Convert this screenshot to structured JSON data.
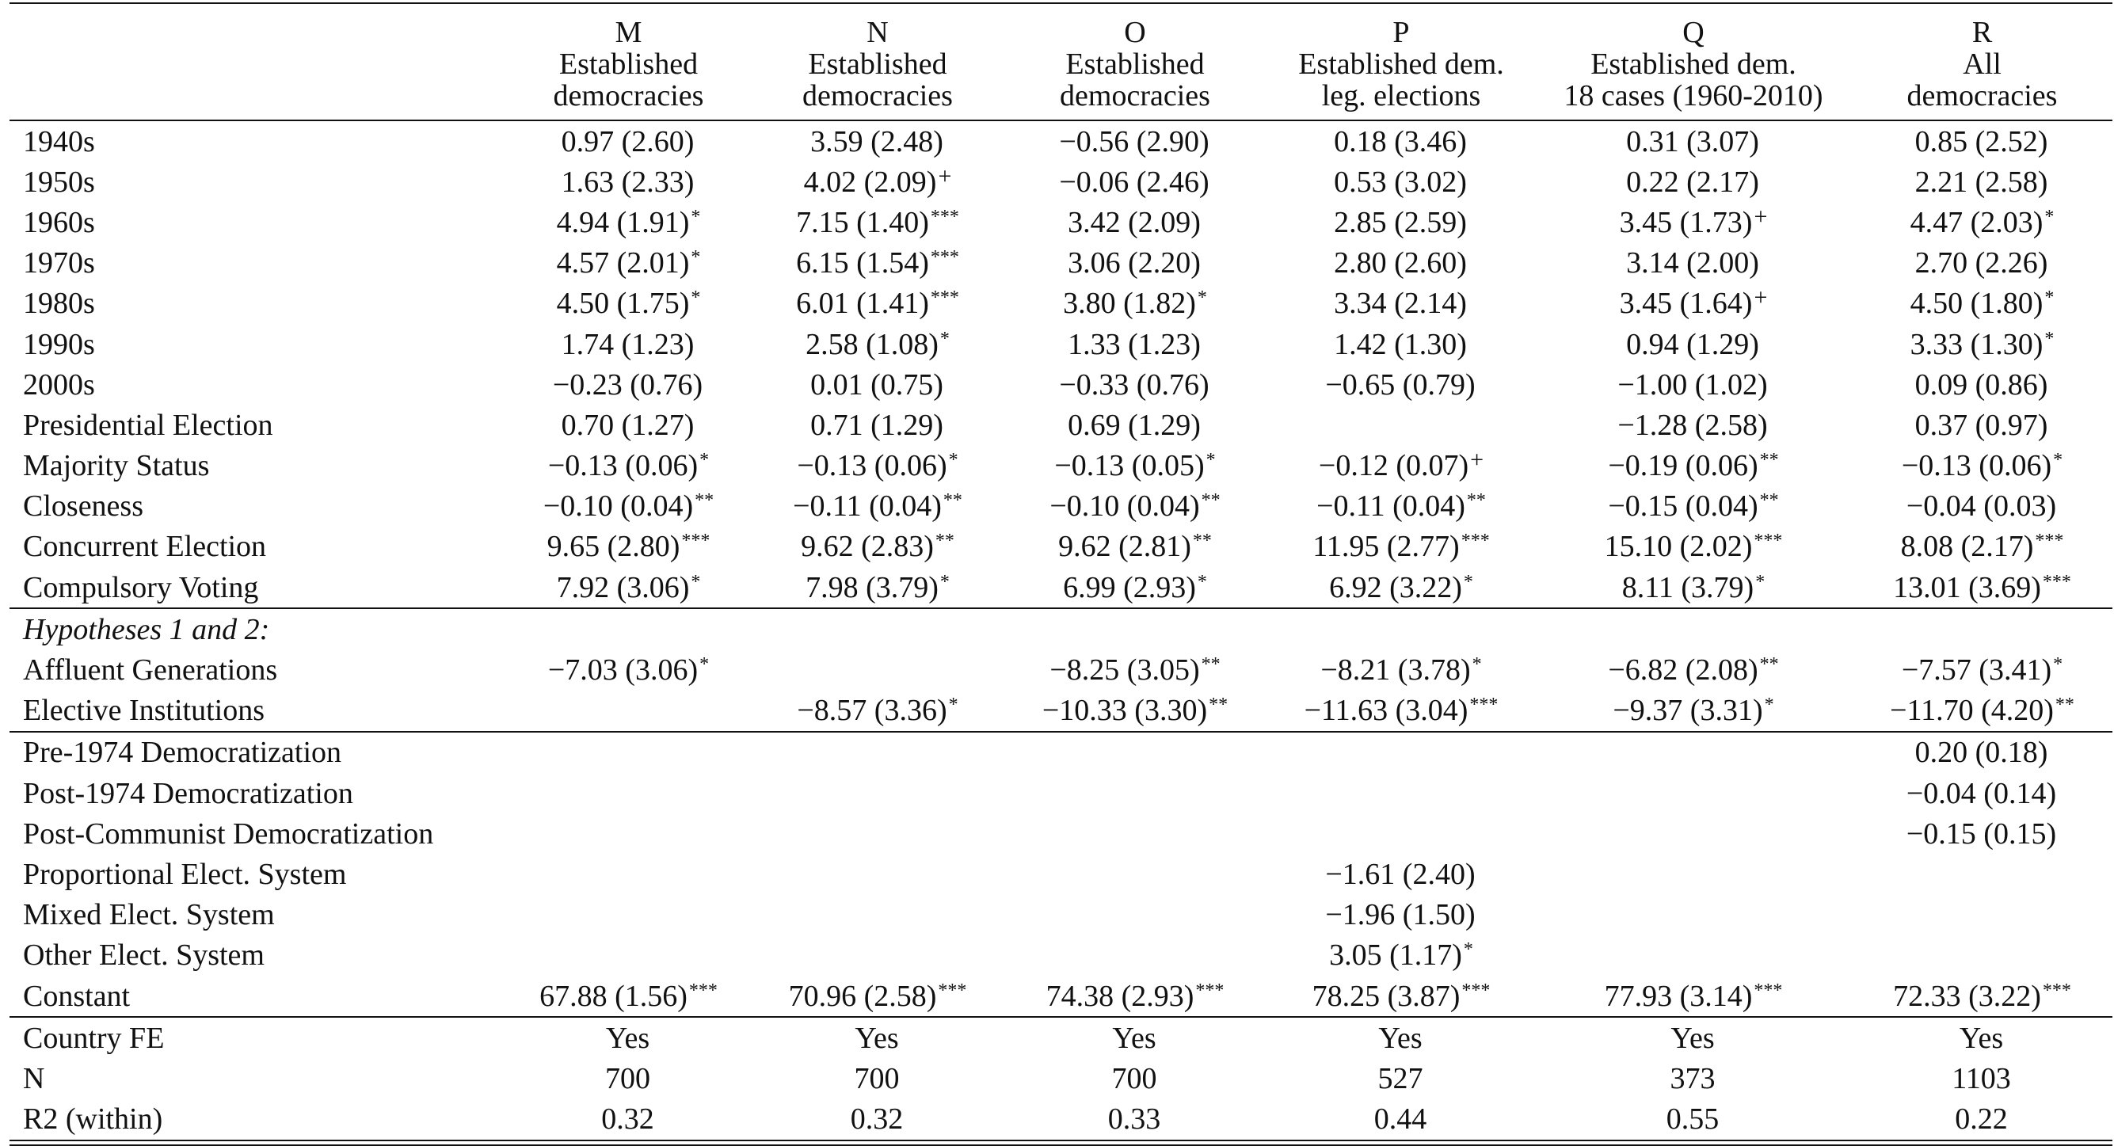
{
  "table": {
    "columns": [
      {
        "letter": "M",
        "line1": "Established",
        "line2": "democracies"
      },
      {
        "letter": "N",
        "line1": "Established",
        "line2": "democracies"
      },
      {
        "letter": "O",
        "line1": "Established",
        "line2": "democracies"
      },
      {
        "letter": "P",
        "line1": "Established dem.",
        "line2": "leg. elections"
      },
      {
        "letter": "Q",
        "line1": "Established dem.",
        "line2": "18 cases (1960-2010)"
      },
      {
        "letter": "R",
        "line1": "All",
        "line2": "democracies"
      }
    ],
    "rows": [
      {
        "label": "1940s",
        "cells": [
          {
            "v": "0.97 (2.60)",
            "s": ""
          },
          {
            "v": "3.59 (2.48)",
            "s": ""
          },
          {
            "v": "−0.56 (2.90)",
            "s": ""
          },
          {
            "v": "0.18 (3.46)",
            "s": ""
          },
          {
            "v": "0.31 (3.07)",
            "s": ""
          },
          {
            "v": "0.85 (2.52)",
            "s": ""
          }
        ]
      },
      {
        "label": "1950s",
        "cells": [
          {
            "v": "1.63 (2.33)",
            "s": ""
          },
          {
            "v": "4.02 (2.09)",
            "s": "+"
          },
          {
            "v": "−0.06 (2.46)",
            "s": ""
          },
          {
            "v": "0.53 (3.02)",
            "s": ""
          },
          {
            "v": "0.22 (2.17)",
            "s": ""
          },
          {
            "v": "2.21 (2.58)",
            "s": ""
          }
        ]
      },
      {
        "label": "1960s",
        "cells": [
          {
            "v": "4.94 (1.91)",
            "s": "*"
          },
          {
            "v": "7.15 (1.40)",
            "s": "***"
          },
          {
            "v": "3.42 (2.09)",
            "s": ""
          },
          {
            "v": "2.85 (2.59)",
            "s": ""
          },
          {
            "v": "3.45 (1.73)",
            "s": "+"
          },
          {
            "v": "4.47 (2.03)",
            "s": "*"
          }
        ]
      },
      {
        "label": "1970s",
        "cells": [
          {
            "v": "4.57 (2.01)",
            "s": "*"
          },
          {
            "v": "6.15 (1.54)",
            "s": "***"
          },
          {
            "v": "3.06 (2.20)",
            "s": ""
          },
          {
            "v": "2.80 (2.60)",
            "s": ""
          },
          {
            "v": "3.14 (2.00)",
            "s": ""
          },
          {
            "v": "2.70 (2.26)",
            "s": ""
          }
        ]
      },
      {
        "label": "1980s",
        "cells": [
          {
            "v": "4.50 (1.75)",
            "s": "*"
          },
          {
            "v": "6.01 (1.41)",
            "s": "***"
          },
          {
            "v": "3.80 (1.82)",
            "s": "*"
          },
          {
            "v": "3.34 (2.14)",
            "s": ""
          },
          {
            "v": "3.45 (1.64)",
            "s": "+"
          },
          {
            "v": "4.50 (1.80)",
            "s": "*"
          }
        ]
      },
      {
        "label": "1990s",
        "cells": [
          {
            "v": "1.74 (1.23)",
            "s": ""
          },
          {
            "v": "2.58 (1.08)",
            "s": "*"
          },
          {
            "v": "1.33 (1.23)",
            "s": ""
          },
          {
            "v": "1.42 (1.30)",
            "s": ""
          },
          {
            "v": "0.94 (1.29)",
            "s": ""
          },
          {
            "v": "3.33 (1.30)",
            "s": "*"
          }
        ]
      },
      {
        "label": "2000s",
        "cells": [
          {
            "v": "−0.23 (0.76)",
            "s": ""
          },
          {
            "v": "0.01 (0.75)",
            "s": ""
          },
          {
            "v": "−0.33 (0.76)",
            "s": ""
          },
          {
            "v": "−0.65 (0.79)",
            "s": ""
          },
          {
            "v": "−1.00 (1.02)",
            "s": ""
          },
          {
            "v": "0.09 (0.86)",
            "s": ""
          }
        ]
      },
      {
        "label": "Presidential Election",
        "cells": [
          {
            "v": "0.70 (1.27)",
            "s": ""
          },
          {
            "v": "0.71 (1.29)",
            "s": ""
          },
          {
            "v": "0.69 (1.29)",
            "s": ""
          },
          {
            "v": "",
            "s": ""
          },
          {
            "v": "−1.28 (2.58)",
            "s": ""
          },
          {
            "v": "0.37 (0.97)",
            "s": ""
          }
        ]
      },
      {
        "label": "Majority Status",
        "cells": [
          {
            "v": "−0.13 (0.06)",
            "s": "*"
          },
          {
            "v": "−0.13 (0.06)",
            "s": "*"
          },
          {
            "v": "−0.13 (0.05)",
            "s": "*"
          },
          {
            "v": "−0.12 (0.07)",
            "s": "+"
          },
          {
            "v": "−0.19 (0.06)",
            "s": "**"
          },
          {
            "v": "−0.13 (0.06)",
            "s": "*"
          }
        ]
      },
      {
        "label": "Closeness",
        "cells": [
          {
            "v": "−0.10 (0.04)",
            "s": "**"
          },
          {
            "v": "−0.11 (0.04)",
            "s": "**"
          },
          {
            "v": "−0.10 (0.04)",
            "s": "**"
          },
          {
            "v": "−0.11 (0.04)",
            "s": "**"
          },
          {
            "v": "−0.15 (0.04)",
            "s": "**"
          },
          {
            "v": "−0.04 (0.03)",
            "s": ""
          }
        ]
      },
      {
        "label": "Concurrent Election",
        "cells": [
          {
            "v": "9.65 (2.80)",
            "s": "***"
          },
          {
            "v": "9.62 (2.83)",
            "s": "**"
          },
          {
            "v": "9.62 (2.81)",
            "s": "**"
          },
          {
            "v": "11.95 (2.77)",
            "s": "***"
          },
          {
            "v": "15.10 (2.02)",
            "s": "***"
          },
          {
            "v": "8.08 (2.17)",
            "s": "***"
          }
        ]
      },
      {
        "label": "Compulsory Voting",
        "cells": [
          {
            "v": "7.92 (3.06)",
            "s": "*"
          },
          {
            "v": "7.98 (3.79)",
            "s": "*"
          },
          {
            "v": "6.99 (2.93)",
            "s": "*"
          },
          {
            "v": "6.92 (3.22)",
            "s": "*"
          },
          {
            "v": "8.11 (3.79)",
            "s": "*"
          },
          {
            "v": "13.01 (3.69)",
            "s": "***"
          }
        ]
      },
      {
        "label": "Hypotheses 1 and 2:",
        "italic": true,
        "rule_above": true,
        "cells": [
          {
            "v": "",
            "s": ""
          },
          {
            "v": "",
            "s": ""
          },
          {
            "v": "",
            "s": ""
          },
          {
            "v": "",
            "s": ""
          },
          {
            "v": "",
            "s": ""
          },
          {
            "v": "",
            "s": ""
          }
        ]
      },
      {
        "label": "Affluent Generations",
        "cells": [
          {
            "v": "−7.03 (3.06)",
            "s": "*"
          },
          {
            "v": "",
            "s": ""
          },
          {
            "v": "−8.25 (3.05)",
            "s": "**"
          },
          {
            "v": "−8.21 (3.78)",
            "s": "*"
          },
          {
            "v": "−6.82 (2.08)",
            "s": "**"
          },
          {
            "v": "−7.57 (3.41)",
            "s": "*"
          }
        ]
      },
      {
        "label": "Elective Institutions",
        "cells": [
          {
            "v": "",
            "s": ""
          },
          {
            "v": "−8.57 (3.36)",
            "s": "*"
          },
          {
            "v": "−10.33 (3.30)",
            "s": "**"
          },
          {
            "v": "−11.63 (3.04)",
            "s": "***"
          },
          {
            "v": "−9.37 (3.31)",
            "s": "*"
          },
          {
            "v": "−11.70 (4.20)",
            "s": "**"
          }
        ]
      },
      {
        "label": "Pre-1974 Democratization",
        "rule_above": true,
        "cells": [
          {
            "v": "",
            "s": ""
          },
          {
            "v": "",
            "s": ""
          },
          {
            "v": "",
            "s": ""
          },
          {
            "v": "",
            "s": ""
          },
          {
            "v": "",
            "s": ""
          },
          {
            "v": "0.20 (0.18)",
            "s": ""
          }
        ]
      },
      {
        "label": "Post-1974 Democratization",
        "cells": [
          {
            "v": "",
            "s": ""
          },
          {
            "v": "",
            "s": ""
          },
          {
            "v": "",
            "s": ""
          },
          {
            "v": "",
            "s": ""
          },
          {
            "v": "",
            "s": ""
          },
          {
            "v": "−0.04 (0.14)",
            "s": ""
          }
        ]
      },
      {
        "label": "Post-Communist Democratization",
        "cells": [
          {
            "v": "",
            "s": ""
          },
          {
            "v": "",
            "s": ""
          },
          {
            "v": "",
            "s": ""
          },
          {
            "v": "",
            "s": ""
          },
          {
            "v": "",
            "s": ""
          },
          {
            "v": "−0.15 (0.15)",
            "s": ""
          }
        ]
      },
      {
        "label": "Proportional Elect. System",
        "cells": [
          {
            "v": "",
            "s": ""
          },
          {
            "v": "",
            "s": ""
          },
          {
            "v": "",
            "s": ""
          },
          {
            "v": "−1.61 (2.40)",
            "s": ""
          },
          {
            "v": "",
            "s": ""
          },
          {
            "v": "",
            "s": ""
          }
        ]
      },
      {
        "label": "Mixed Elect. System",
        "cells": [
          {
            "v": "",
            "s": ""
          },
          {
            "v": "",
            "s": ""
          },
          {
            "v": "",
            "s": ""
          },
          {
            "v": "−1.96 (1.50)",
            "s": ""
          },
          {
            "v": "",
            "s": ""
          },
          {
            "v": "",
            "s": ""
          }
        ]
      },
      {
        "label": "Other Elect. System",
        "cells": [
          {
            "v": "",
            "s": ""
          },
          {
            "v": "",
            "s": ""
          },
          {
            "v": "",
            "s": ""
          },
          {
            "v": "3.05 (1.17)",
            "s": "*"
          },
          {
            "v": "",
            "s": ""
          },
          {
            "v": "",
            "s": ""
          }
        ]
      },
      {
        "label": "Constant",
        "cells": [
          {
            "v": "67.88 (1.56)",
            "s": "***"
          },
          {
            "v": "70.96 (2.58)",
            "s": "***"
          },
          {
            "v": "74.38 (2.93)",
            "s": "***"
          },
          {
            "v": "78.25 (3.87)",
            "s": "***"
          },
          {
            "v": "77.93 (3.14)",
            "s": "***"
          },
          {
            "v": "72.33 (3.22)",
            "s": "***"
          }
        ]
      },
      {
        "label": "Country FE",
        "rule_above": true,
        "cells": [
          {
            "v": "Yes",
            "s": ""
          },
          {
            "v": "Yes",
            "s": ""
          },
          {
            "v": "Yes",
            "s": ""
          },
          {
            "v": "Yes",
            "s": ""
          },
          {
            "v": "Yes",
            "s": ""
          },
          {
            "v": "Yes",
            "s": ""
          }
        ]
      },
      {
        "label": "N",
        "cells": [
          {
            "v": "700",
            "s": ""
          },
          {
            "v": "700",
            "s": ""
          },
          {
            "v": "700",
            "s": ""
          },
          {
            "v": "527",
            "s": ""
          },
          {
            "v": "373",
            "s": ""
          },
          {
            "v": "1103",
            "s": ""
          }
        ]
      },
      {
        "label": "R2 (within)",
        "last": true,
        "cells": [
          {
            "v": "0.32",
            "s": ""
          },
          {
            "v": "0.32",
            "s": ""
          },
          {
            "v": "0.33",
            "s": ""
          },
          {
            "v": "0.44",
            "s": ""
          },
          {
            "v": "0.55",
            "s": ""
          },
          {
            "v": "0.22",
            "s": ""
          }
        ]
      }
    ]
  }
}
